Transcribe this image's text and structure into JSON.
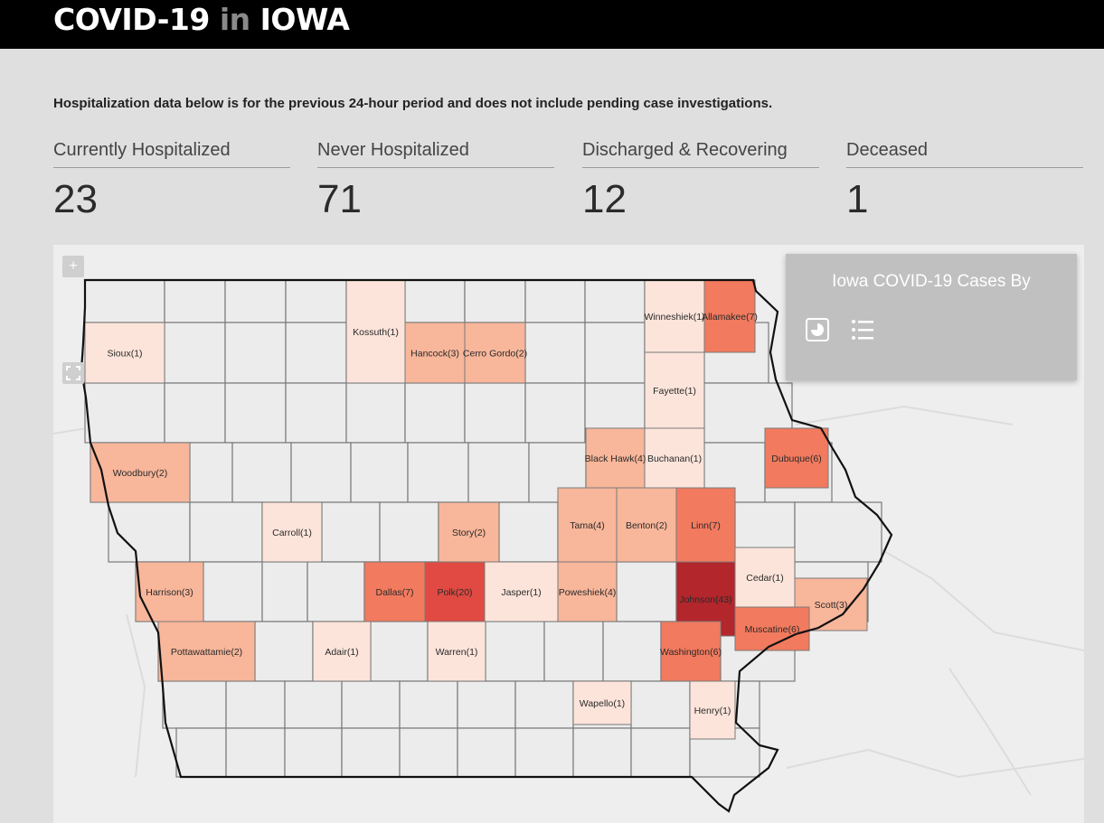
{
  "header": {
    "title_prefix": "COVID-19",
    "title_in": "in",
    "title_suffix": "IOWA"
  },
  "note": "Hospitalization data below is for the previous 24-hour period and does not include pending case investigations.",
  "stats": [
    {
      "label": "Currently Hospitalized",
      "value": "23"
    },
    {
      "label": "Never Hospitalized",
      "value": "71"
    },
    {
      "label": "Discharged & Recovering",
      "value": "12"
    },
    {
      "label": "Deceased",
      "value": "1"
    }
  ],
  "map": {
    "zoom_in_label": "+",
    "legend_title": "Iowa COVID-19 Cases By",
    "legend_icons": [
      "pie-chart-icon",
      "list-icon"
    ],
    "colors": {
      "c1": "#fce4da",
      "c2": "#f8b69a",
      "c3": "#f8b69a",
      "c4": "#f8b69a",
      "c6": "#f27a5e",
      "c7": "#f27a5e",
      "c20": "#e04a42",
      "c43": "#b2262c"
    },
    "counties": [
      {
        "name": "Sioux(1)",
        "cases": 1
      },
      {
        "name": "Kossuth(1)",
        "cases": 1
      },
      {
        "name": "Hancock(3)",
        "cases": 3
      },
      {
        "name": "Cerro Gordo(2)",
        "cases": 2
      },
      {
        "name": "Winneshiek(1)",
        "cases": 1
      },
      {
        "name": "Allamakee(7)",
        "cases": 7
      },
      {
        "name": "Fayette(1)",
        "cases": 1
      },
      {
        "name": "Woodbury(2)",
        "cases": 2
      },
      {
        "name": "Black Hawk(4)",
        "cases": 4
      },
      {
        "name": "Buchanan(1)",
        "cases": 1
      },
      {
        "name": "Dubuque(6)",
        "cases": 6
      },
      {
        "name": "Carroll(1)",
        "cases": 1
      },
      {
        "name": "Story(2)",
        "cases": 2
      },
      {
        "name": "Tama(4)",
        "cases": 4
      },
      {
        "name": "Benton(2)",
        "cases": 2
      },
      {
        "name": "Linn(7)",
        "cases": 7
      },
      {
        "name": "Harrison(3)",
        "cases": 3
      },
      {
        "name": "Dallas(7)",
        "cases": 7
      },
      {
        "name": "Polk(20)",
        "cases": 20
      },
      {
        "name": "Jasper(1)",
        "cases": 1
      },
      {
        "name": "Poweshiek(4)",
        "cases": 4
      },
      {
        "name": "Johnson(43)",
        "cases": 43
      },
      {
        "name": "Cedar(1)",
        "cases": 1
      },
      {
        "name": "Scott(3)",
        "cases": 3
      },
      {
        "name": "Muscatine(6)",
        "cases": 6
      },
      {
        "name": "Pottawattamie(2)",
        "cases": 2
      },
      {
        "name": "Adair(1)",
        "cases": 1
      },
      {
        "name": "Warren(1)",
        "cases": 1
      },
      {
        "name": "Washington(6)",
        "cases": 6
      },
      {
        "name": "Wapello(1)",
        "cases": 1
      },
      {
        "name": "Henry(1)",
        "cases": 1
      }
    ]
  }
}
